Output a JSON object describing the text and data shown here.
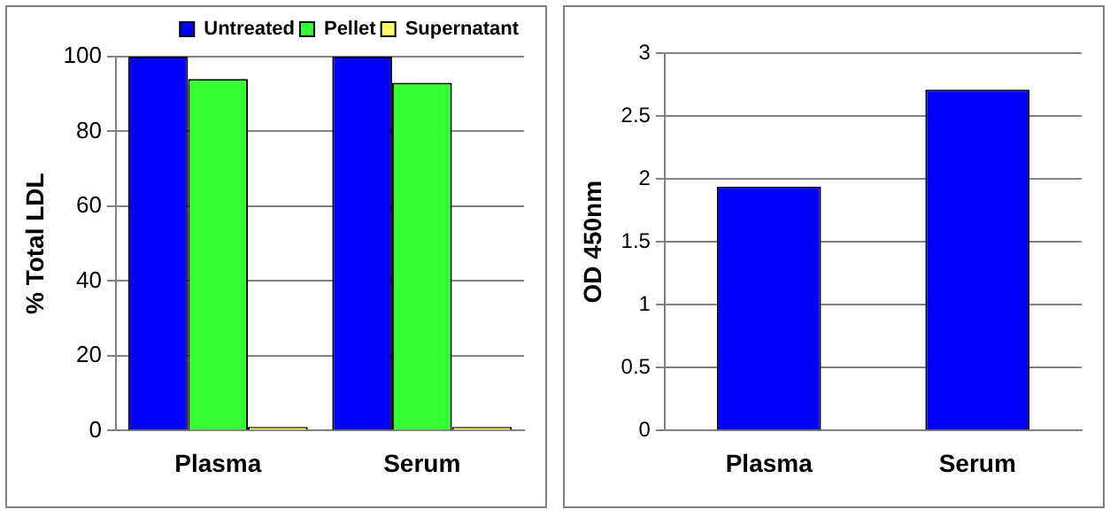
{
  "chart_data": [
    {
      "type": "bar",
      "ylabel": "% Total LDL",
      "categories": [
        "Plasma",
        "Serum"
      ],
      "series": [
        {
          "name": "Untreated",
          "color": "#0000ff",
          "values": [
            100,
            100
          ]
        },
        {
          "name": "Pellet",
          "color": "#33ff33",
          "values": [
            94,
            93
          ]
        },
        {
          "name": "Supernatant",
          "color": "#ffff66",
          "values": [
            1,
            1
          ]
        }
      ],
      "ylim": [
        0,
        100
      ],
      "yticks": [
        0,
        20,
        40,
        60,
        80,
        100
      ],
      "grid": "y",
      "legend": "top right"
    },
    {
      "type": "bar",
      "ylabel": "OD 450nm",
      "categories": [
        "Plasma",
        "Serum"
      ],
      "series": [
        {
          "color": "#0000ff",
          "values": [
            1.94,
            2.71
          ]
        }
      ],
      "ylim": [
        0,
        3
      ],
      "yticks": [
        0,
        0.5,
        1,
        1.5,
        2,
        2.5,
        3
      ],
      "grid": "y"
    }
  ]
}
